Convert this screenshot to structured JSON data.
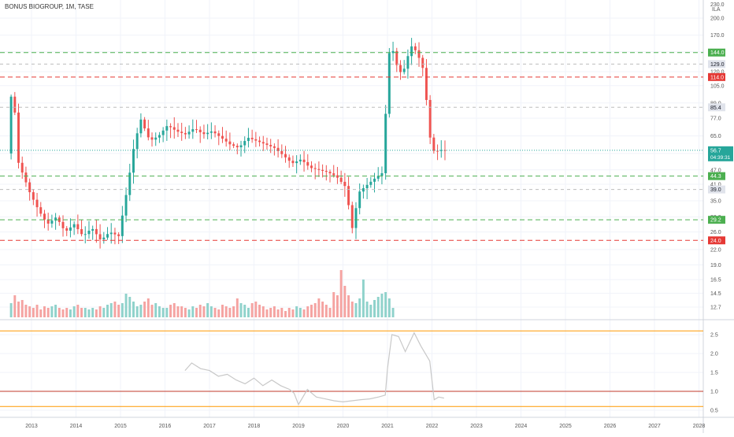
{
  "header": {
    "title": "BONUS BIOGROUP, 1M, TASE",
    "currency": "ILA"
  },
  "colors": {
    "up": "#26a69a",
    "down": "#ef5350",
    "green_line": "#4caf50",
    "red_line": "#e53935",
    "grey_line": "#bdbdbd",
    "osc_line": "#c8c8c8",
    "orange_line": "#ff9800"
  },
  "chart_data": [
    {
      "type": "candlestick",
      "title": "BONUS BIOGROUP, 1M, TASE",
      "scale": "log",
      "y_unit": "ILA",
      "ylim": [
        11.5,
        240
      ],
      "x_ticks": [
        "2013",
        "2014",
        "2015",
        "2016",
        "2017",
        "2018",
        "2019",
        "2020",
        "2021",
        "2022",
        "2023",
        "2024",
        "2025",
        "2026",
        "2027",
        "2028"
      ],
      "y_ticks": [
        12.7,
        14.5,
        16.5,
        19.0,
        22.0,
        26.0,
        30.0,
        35.0,
        41.0,
        47.0,
        55.0,
        65.0,
        77.0,
        89.0,
        105.0,
        120.0,
        145.0,
        170.0,
        200.0
      ],
      "y_top_label": "230.0",
      "last_price": {
        "value": 56.7,
        "label": "56.7",
        "countdown": "04:39:31"
      },
      "levels": [
        {
          "value": 144.0,
          "label": "144.0",
          "kind": "support-green"
        },
        {
          "value": 129.0,
          "label": "129.0",
          "kind": "grey"
        },
        {
          "value": 114.0,
          "label": "114.0",
          "kind": "resistance-red"
        },
        {
          "value": 85.4,
          "label": "85.4",
          "kind": "grey"
        },
        {
          "value": 44.3,
          "label": "44.3",
          "kind": "support-green"
        },
        {
          "value": 39.0,
          "label": "39.0",
          "kind": "grey"
        },
        {
          "value": 29.2,
          "label": "29.2",
          "kind": "support-green"
        },
        {
          "value": 24.0,
          "label": "24.0",
          "kind": "resistance-red"
        }
      ],
      "price_path": [
        [
          2012.5,
          55
        ],
        [
          2012.62,
          120
        ],
        [
          2012.72,
          52
        ],
        [
          2012.85,
          45
        ],
        [
          2013.0,
          38
        ],
        [
          2013.2,
          32
        ],
        [
          2013.4,
          28
        ],
        [
          2013.6,
          30
        ],
        [
          2013.8,
          26
        ],
        [
          2014.0,
          28
        ],
        [
          2014.2,
          25
        ],
        [
          2014.4,
          27
        ],
        [
          2014.6,
          24
        ],
        [
          2014.8,
          26
        ],
        [
          2015.0,
          25
        ],
        [
          2015.2,
          40
        ],
        [
          2015.35,
          60
        ],
        [
          2015.5,
          76
        ],
        [
          2015.7,
          62
        ],
        [
          2015.9,
          65
        ],
        [
          2016.1,
          72
        ],
        [
          2016.3,
          68
        ],
        [
          2016.5,
          66
        ],
        [
          2016.7,
          70
        ],
        [
          2016.9,
          66
        ],
        [
          2017.1,
          68
        ],
        [
          2017.3,
          64
        ],
        [
          2017.5,
          60
        ],
        [
          2017.7,
          58
        ],
        [
          2017.9,
          64
        ],
        [
          2018.1,
          62
        ],
        [
          2018.3,
          60
        ],
        [
          2018.5,
          58
        ],
        [
          2018.7,
          54
        ],
        [
          2018.9,
          50
        ],
        [
          2019.1,
          52
        ],
        [
          2019.3,
          48
        ],
        [
          2019.5,
          47
        ],
        [
          2019.7,
          46
        ],
        [
          2019.9,
          44
        ],
        [
          2020.1,
          40
        ],
        [
          2020.25,
          27
        ],
        [
          2020.4,
          38
        ],
        [
          2020.6,
          41
        ],
        [
          2020.8,
          44
        ],
        [
          2020.95,
          46
        ],
        [
          2021.05,
          140
        ],
        [
          2021.15,
          150
        ],
        [
          2021.3,
          118
        ],
        [
          2021.45,
          125
        ],
        [
          2021.55,
          155
        ],
        [
          2021.7,
          145
        ],
        [
          2021.85,
          122
        ],
        [
          2022.0,
          64
        ],
        [
          2022.1,
          55
        ],
        [
          2022.2,
          57
        ],
        [
          2022.27,
          56.7
        ]
      ],
      "volume_series": [
        9,
        14,
        10,
        11,
        8,
        7,
        6,
        8,
        5,
        7,
        6,
        7,
        8,
        6,
        5,
        6,
        5,
        7,
        8,
        6,
        6,
        5,
        6,
        5,
        7,
        6,
        8,
        9,
        10,
        8,
        9,
        15,
        13,
        10,
        7,
        8,
        10,
        12,
        8,
        9,
        7,
        6,
        6,
        8,
        9,
        7,
        7,
        6,
        5,
        7,
        6,
        8,
        7,
        9,
        7,
        6,
        5,
        8,
        7,
        6,
        7,
        12,
        9,
        8,
        6,
        9,
        10,
        8,
        7,
        5,
        6,
        7,
        5,
        6,
        4,
        6,
        5,
        7,
        6,
        5,
        7,
        8,
        9,
        12,
        10,
        8,
        6,
        16,
        14,
        30,
        20,
        14,
        10,
        9,
        12,
        24,
        10,
        8,
        11,
        13,
        15,
        16,
        12,
        6
      ],
      "oscillator": {
        "type": "line",
        "ylim": [
          0.5,
          2.7
        ],
        "y_ticks": [
          0.5,
          1.0,
          1.5,
          2.0,
          2.5
        ],
        "reference_levels": [
          2.6,
          1.0,
          0.6
        ],
        "x": [
          2016.45,
          2016.6,
          2016.8,
          2017.0,
          2017.2,
          2017.4,
          2017.6,
          2017.8,
          2018.0,
          2018.2,
          2018.4,
          2018.6,
          2018.8,
          2018.9,
          2019.0,
          2019.2,
          2019.4,
          2019.6,
          2019.8,
          2020.0,
          2020.2,
          2020.4,
          2020.6,
          2020.8,
          2020.95,
          2021.0,
          2021.1,
          2021.25,
          2021.4,
          2021.5,
          2021.6,
          2021.75,
          2021.95,
          2022.05,
          2022.15,
          2022.27
        ],
        "values": [
          1.55,
          1.75,
          1.6,
          1.55,
          1.4,
          1.45,
          1.3,
          1.2,
          1.35,
          1.15,
          1.3,
          1.15,
          1.05,
          0.95,
          0.65,
          1.05,
          0.85,
          0.8,
          0.75,
          0.72,
          0.75,
          0.78,
          0.8,
          0.85,
          0.9,
          1.6,
          2.5,
          2.45,
          2.05,
          2.3,
          2.55,
          2.2,
          1.8,
          0.78,
          0.85,
          0.82
        ]
      }
    }
  ]
}
